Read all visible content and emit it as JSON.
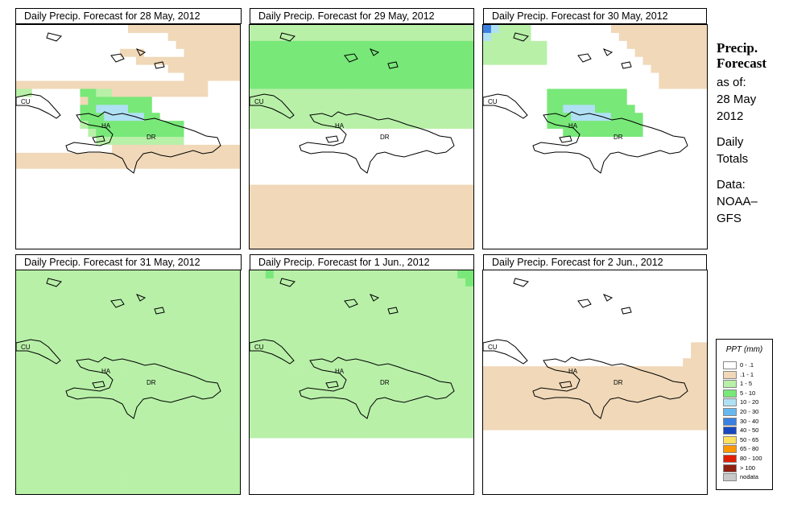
{
  "sidebar": {
    "title_line1": "Precip.",
    "title_line2": "Forecast",
    "asof_label": "as of:",
    "date_line1": "28 May",
    "date_line2": "2012",
    "totals_line1": "Daily",
    "totals_line2": "Totals",
    "source_line1": "Data:",
    "source_line2": "NOAA–",
    "source_line3": "GFS"
  },
  "map_labels": {
    "cuba": "CU",
    "haiti": "HA",
    "dominican_republic": "DR"
  },
  "panels": [
    {
      "title": "Daily Precip. Forecast for  28 May, 2012",
      "grid": [
        "W,W,W,W,W,W,W,W,W,W,W,W,W,W,T,T,T,T,T,T,T,T,T,T,T,T,T,T",
        "W,W,W,W,W,W,W,W,W,W,W,W,W,W,W,W,W,W,W,T,T,T,T,T,T,T,T,T",
        "W,W,W,W,W,W,W,W,W,W,W,W,W,W,W,W,W,W,W,W,T,T,T,T,T,T,T,T",
        "W,W,W,W,W,W,W,W,W,W,W,W,W,T,T,T,W,W,W,W,W,T,T,T,T,T,T,T",
        "W,W,W,W,W,W,W,W,W,W,W,W,W,W,W,T,T,T,T,T,T,T,T,T,T,T,T,T",
        "W,W,W,W,W,W,W,W,W,W,W,W,W,W,W,W,W,W,W,T,T,T,T,T,T,T,T,T",
        "W,W,W,W,W,W,W,W,W,W,W,W,W,W,W,W,W,W,W,W,W,T,T,T,T,T,T,T",
        "T,T,T,T,T,T,T,T,T,T,T,T,T,T,T,T,T,T,T,T,T,T,T,T,W,W,W,W",
        "L,L,W,W,W,W,W,W,G,G,L,L,T,T,T,T,T,T,T,T,T,T,T,T,W,W,W,W",
        "W,W,W,W,W,W,W,W,T,G,G,G,G,G,G,G,G,W,W,W,W,W,W,W,W,W,W,W",
        "W,W,W,W,W,W,W,W,G,G,S,S,S,S,G,G,G,W,W,W,W,W,W,W,W,W,W,W",
        "W,W,W,W,W,W,W,W,G,G,G,S,S,S,S,S,G,G,W,W,W,W,W,W,W,W,W,W",
        "W,W,W,W,W,W,W,W,L,G,G,G,G,G,G,G,G,G,G,G,G,W,W,W,W,W,W,W",
        "W,W,W,W,W,W,W,W,W,L,G,G,G,G,G,G,G,G,G,G,G,W,W,W,W,W,W,W",
        "W,W,W,W,W,W,W,W,W,W,L,L,L,L,L,L,L,L,L,L,L,W,W,W,W,W,W,W",
        "W,W,W,W,W,W,W,W,W,W,W,W,T,T,T,T,T,T,T,T,T,T,T,T,T,T,T,T",
        "T,T,T,T,T,T,T,T,T,T,T,T,T,T,T,T,T,T,T,T,T,T,T,T,T,T,T,T",
        "T,T,T,T,T,T,T,T,T,T,T,T,T,T,T,T,T,T,T,T,T,T,T,T,T,T,T,T",
        "W,W,W,W,W,W,W,W,W,W,W,W,W,W,W,W,W,W,W,W,W,W,W,W,W,W,W,W",
        "W,W,W,W,W,W,W,W,W,W,W,W,W,W,W,W,W,W,W,W,W,W,W,W,W,W,W,W",
        "W,W,W,W,W,W,W,W,W,W,W,W,W,W,W,W,W,W,W,W,W,W,W,W,W,W,W,W",
        "W,W,W,W,W,W,W,W,W,W,W,W,W,W,W,W,W,W,W,W,W,W,W,W,W,W,W,W",
        "W,W,W,W,W,W,W,W,W,W,W,W,W,W,W,W,W,W,W,W,W,W,W,W,W,W,W,W",
        "W,W,W,W,W,W,W,W,W,W,W,W,W,W,W,W,W,W,W,W,W,W,W,W,W,W,W,W",
        "W,W,W,W,W,W,W,W,W,W,W,W,W,W,W,W,W,W,W,W,W,W,W,W,W,W,W,W",
        "W,W,W,W,W,W,W,W,W,W,W,W,W,W,W,W,W,W,W,W,W,W,W,W,W,W,W,W",
        "W,W,W,W,W,W,W,W,W,W,W,W,W,W,W,W,W,W,W,W,W,W,W,W,W,W,W,W",
        "W,W,W,W,W,W,W,W,W,W,W,W,W,W,W,W,W,W,W,W,W,W,W,W,W,W,W,W"
      ]
    },
    {
      "title": "Daily Precip. Forecast for  29 May, 2012",
      "grid": [
        "L,L,L,L,L,L,L,L,L,L,L,L,L,L,L,L,L,L,L,L,L,L,L,L,L,L,L,L",
        "L,L,L,L,L,L,L,L,L,L,L,L,L,L,L,L,L,L,L,L,L,L,L,L,L,L,L,L",
        "G,G,G,G,G,G,G,G,G,G,G,G,G,G,G,G,G,G,G,G,G,G,G,G,G,G,G,G",
        "G,G,G,G,G,G,G,G,G,G,G,G,G,G,G,G,G,G,G,G,G,G,G,G,G,G,G,G",
        "G,G,G,G,G,G,G,G,G,G,G,G,G,G,G,G,G,G,G,G,G,G,G,G,G,G,G,G",
        "G,G,G,G,G,G,G,G,G,G,G,G,G,G,G,G,G,G,G,G,G,G,G,G,G,G,G,G",
        "G,G,G,G,G,G,G,G,G,G,G,G,G,G,G,G,G,G,G,G,G,G,G,G,G,G,G,G",
        "G,G,G,G,G,G,G,G,G,G,G,G,G,G,G,G,G,G,G,G,G,G,G,G,G,G,G,G",
        "L,L,L,L,L,L,L,L,L,L,L,L,L,L,L,L,L,L,L,L,L,L,L,L,L,L,L,L",
        "L,L,L,L,L,L,L,L,L,L,L,L,L,L,L,L,L,L,L,L,L,L,L,L,L,L,L,L",
        "L,L,L,L,L,L,L,L,L,L,L,L,L,L,L,L,L,L,L,L,L,L,L,L,L,L,L,L",
        "L,L,L,L,L,L,L,L,L,L,L,L,L,L,L,L,L,L,L,L,L,L,L,L,L,L,L,L",
        "L,L,L,L,L,L,L,L,L,L,L,L,L,L,L,L,L,L,L,L,L,L,L,L,L,L,L,L",
        "W,W,W,W,W,W,W,W,W,W,W,W,W,W,W,W,W,W,W,W,W,W,W,W,W,W,W,W",
        "W,W,W,W,W,W,W,W,W,W,W,W,W,W,W,W,W,W,W,W,W,W,W,W,W,W,W,W",
        "W,W,W,W,W,W,W,W,W,W,W,W,W,W,W,W,W,W,W,W,W,W,W,W,W,W,W,W",
        "W,W,W,W,W,W,W,W,W,W,W,W,W,W,W,W,W,W,W,W,W,W,W,W,W,W,W,W",
        "W,W,W,W,W,W,W,W,W,W,W,W,W,W,W,W,W,W,W,W,W,W,W,W,W,W,W,W",
        "W,W,W,W,W,W,W,W,W,W,W,W,W,W,W,W,W,W,W,W,W,W,W,W,W,W,W,W",
        "W,W,W,W,W,W,W,W,W,W,W,W,W,W,W,W,W,W,W,W,W,W,W,W,W,W,W,W",
        "T,T,T,T,T,T,T,T,T,T,T,T,T,T,T,T,T,T,T,T,T,T,T,T,T,T,T,T",
        "T,T,T,T,T,T,T,T,T,T,T,T,T,T,T,T,T,T,T,T,T,T,T,T,T,T,T,T",
        "T,T,T,T,T,T,T,T,T,T,T,T,T,T,T,T,T,T,T,T,T,T,T,T,T,T,T,T",
        "T,T,T,T,T,T,T,T,T,T,T,T,T,T,T,T,T,T,T,T,T,T,T,T,T,T,T,T",
        "T,T,T,T,T,T,T,T,T,T,T,T,T,T,T,T,T,T,T,T,T,T,T,T,T,T,T,T",
        "T,T,T,T,T,T,T,T,T,T,T,T,T,T,T,T,T,T,T,T,T,T,T,T,T,T,T,T",
        "T,T,T,T,T,T,T,T,T,T,T,T,T,T,T,T,T,T,T,T,T,T,T,T,T,T,T,T",
        "T,T,T,T,T,T,T,T,T,T,T,T,T,T,T,T,T,T,T,T,T,T,T,T,T,T,T,T"
      ]
    },
    {
      "title": "Daily Precip. Forecast for  30 May, 2012",
      "grid": [
        "B,S,L,L,L,L,W,W,W,W,W,W,W,W,W,W,T,T,T,T,T,T,T,T,T,T,T,T",
        "S,L,L,L,L,L,W,W,W,W,W,W,W,W,W,W,W,T,T,T,T,T,T,T,T,T,T,T",
        "L,L,L,L,L,L,L,L,W,W,W,W,W,W,W,W,W,W,T,T,T,T,T,T,T,T,T,T",
        "L,L,L,L,L,L,L,L,W,W,W,W,W,W,W,W,W,W,W,T,T,T,T,T,T,T,T,T",
        "L,L,L,L,L,L,L,L,W,W,W,W,W,W,W,W,W,W,W,W,T,T,T,T,T,T,T,T",
        "W,W,W,W,W,W,W,W,W,W,W,W,W,W,W,W,W,W,W,W,W,T,T,T,T,T,T,T",
        "W,W,W,W,W,W,W,W,W,W,W,W,W,W,W,W,W,W,W,W,W,W,T,T,T,T,T,T",
        "W,W,W,W,W,W,W,W,W,W,W,W,W,W,W,W,W,W,W,W,W,W,T,T,T,T,T,T",
        "W,W,W,W,W,W,W,W,G,G,G,G,G,G,G,G,G,G,W,W,W,W,W,W,W,W,W,W",
        "W,W,W,W,W,W,W,W,G,G,G,G,G,G,G,G,G,G,W,W,W,W,W,W,W,W,W,W",
        "W,W,W,W,W,W,W,W,G,G,S,S,S,S,G,G,G,G,G,W,W,W,W,W,W,W,W,W",
        "W,W,W,W,W,W,W,W,G,G,G,S,S,S,S,S,G,G,G,G,W,W,W,W,W,W,W,W",
        "W,W,W,W,W,W,W,W,G,G,G,G,G,G,G,G,G,G,G,G,W,W,W,W,W,W,W,W",
        "W,W,W,W,W,W,W,W,W,W,G,G,G,G,G,G,G,G,G,G,W,W,W,W,W,W,W,W",
        "W,W,W,W,W,W,W,W,W,W,W,W,W,W,W,W,W,W,W,W,W,W,W,W,W,W,W,W",
        "W,W,W,W,W,W,W,W,W,W,W,W,W,W,W,W,W,W,W,W,W,W,W,W,W,W,W,W",
        "W,W,W,W,W,W,W,W,W,W,W,W,W,W,W,W,W,W,W,W,W,W,W,W,W,W,W,W",
        "W,W,W,W,W,W,W,W,W,W,W,W,W,W,W,W,W,W,W,W,W,W,W,W,W,W,W,W",
        "W,W,W,W,W,W,W,W,W,W,W,W,W,W,W,W,W,W,W,W,W,W,W,W,W,W,W,W",
        "W,W,W,W,W,W,W,W,W,W,W,W,W,W,W,W,W,W,W,W,W,W,W,W,W,W,W,W",
        "W,W,W,W,W,W,W,W,W,W,W,W,W,W,W,W,W,W,W,W,W,W,W,W,W,W,W,W",
        "W,W,W,W,W,W,W,W,W,W,W,W,W,W,W,W,W,W,W,W,W,W,W,W,W,W,W,W",
        "W,W,W,W,W,W,W,W,W,W,W,W,W,W,W,W,W,W,W,W,W,W,W,W,W,W,W,W",
        "W,W,W,W,W,W,W,W,W,W,W,W,W,W,W,W,W,W,W,W,W,W,W,W,W,W,W,W",
        "W,W,W,W,W,W,W,W,W,W,W,W,W,W,W,W,W,W,W,W,W,W,W,W,W,W,W,W",
        "W,W,W,W,W,W,W,W,W,W,W,W,W,W,W,W,W,W,W,W,W,W,W,W,W,W,W,W",
        "W,W,W,W,W,W,W,W,W,W,W,W,W,W,W,W,W,W,W,W,W,W,W,W,W,W,W,W",
        "W,W,W,W,W,W,W,W,W,W,W,W,W,W,W,W,W,W,W,W,W,W,W,W,W,W,W,W"
      ]
    },
    {
      "title": "Daily Precip. Forecast for  31 May, 2012",
      "grid": [
        "L,L,L,L,L,L,L,L,L,L,L,L,L,L,L,L,L,L,L,L,L,L,L,L,L,L,L,L",
        "L,L,L,L,L,L,L,L,L,L,L,L,L,L,L,L,L,L,L,L,L,L,L,L,L,L,L,L",
        "L,L,L,L,L,L,L,L,L,L,L,L,L,L,L,L,L,L,L,L,L,L,L,L,L,L,L,L",
        "L,L,L,L,L,L,L,L,L,L,L,L,L,L,L,L,L,L,L,L,L,L,L,L,L,L,L,L",
        "L,L,L,L,L,L,L,L,L,L,L,L,L,L,L,L,L,L,L,L,L,L,L,L,L,L,L,L",
        "L,L,L,L,L,L,L,L,L,L,L,L,L,L,L,L,L,L,L,L,L,L,L,L,L,L,L,L",
        "L,L,L,L,L,L,L,L,L,L,L,L,L,L,L,L,L,L,L,L,L,L,L,L,L,L,L,L",
        "L,L,L,L,L,L,L,L,L,L,L,L,L,L,L,L,L,L,L,L,L,L,L,L,L,L,L,L",
        "L,L,L,L,L,L,L,L,L,L,L,L,L,L,L,L,L,L,L,L,L,L,L,L,L,L,L,L",
        "L,L,L,L,L,L,L,L,L,L,L,L,L,L,L,L,L,L,L,L,L,L,L,L,L,L,L,L",
        "L,L,L,L,L,L,L,L,L,L,L,L,L,L,L,L,L,L,L,L,L,L,L,L,L,L,L,L",
        "L,L,L,L,L,L,L,L,L,L,L,L,L,L,L,L,L,L,L,L,L,L,L,L,L,L,L,L",
        "L,L,L,L,L,L,L,L,L,L,L,L,L,L,L,L,L,L,L,L,L,L,L,L,L,L,L,L",
        "L,L,L,L,L,L,L,L,L,L,L,L,L,L,L,L,L,L,L,L,L,L,L,L,L,L,L,L",
        "L,L,L,L,L,L,L,L,L,L,L,L,L,L,L,L,L,L,L,L,L,L,L,L,L,L,L,L",
        "L,L,L,L,L,L,L,L,L,L,L,L,L,L,L,L,L,L,L,L,L,L,L,L,L,L,L,L",
        "L,L,L,L,L,L,L,L,L,L,L,L,L,L,L,L,L,L,L,L,L,L,L,L,L,L,L,L",
        "L,L,L,L,L,L,L,L,L,L,L,L,L,L,L,L,L,L,L,L,L,L,L,L,L,L,L,L",
        "L,L,L,L,L,L,L,L,L,L,L,L,L,L,L,L,L,L,L,L,L,L,L,L,L,L,L,L",
        "L,L,L,L,L,L,L,L,L,L,L,L,L,L,L,L,L,L,L,L,L,L,L,L,L,L,L,L",
        "L,L,L,L,L,L,L,L,L,L,L,L,L,L,L,L,L,L,L,L,L,L,L,L,L,L,L,L",
        "L,L,L,L,L,L,L,L,L,L,L,L,L,L,L,L,L,L,L,L,L,L,L,L,L,L,L,L",
        "L,L,L,L,L,L,L,L,L,L,L,L,L,L,L,L,L,L,L,L,L,L,L,L,L,L,L,L",
        "L,L,L,L,L,L,L,L,L,L,L,L,L,L,L,L,L,L,L,L,L,L,L,L,L,L,L,L",
        "L,L,L,L,L,L,L,L,L,L,L,L,L,L,L,L,L,L,L,L,L,L,L,L,L,L,L,L",
        "L,L,L,L,L,L,L,L,L,L,L,L,L,L,L,L,L,L,L,L,L,L,L,L,L,L,L,L",
        "L,L,L,L,L,L,L,L,L,L,L,L,L,L,L,L,L,L,L,L,L,L,L,L,L,L,L,L",
        "L,L,L,L,L,L,L,L,L,L,L,L,L,L,L,L,L,L,L,L,L,L,L,L,L,L,L,L"
      ]
    },
    {
      "title": "Daily Precip. Forecast for  1 Jun., 2012",
      "grid": [
        "L,L,G,L,L,L,L,L,L,L,L,L,L,L,L,L,L,L,L,L,L,L,L,L,L,L,G,G",
        "L,L,L,L,L,L,L,L,L,L,L,L,L,L,L,L,L,L,L,L,L,L,L,L,L,L,L,G",
        "L,L,L,L,L,L,L,L,L,L,L,L,L,L,L,L,L,L,L,L,L,L,L,L,L,L,L,L",
        "L,L,L,L,L,L,L,L,L,L,L,L,L,L,L,L,L,L,L,L,L,L,L,L,L,L,L,L",
        "L,L,L,L,L,L,L,L,L,L,L,L,L,L,L,L,L,L,L,L,L,L,L,L,L,L,L,L",
        "L,L,L,L,L,L,L,L,L,L,L,L,L,L,L,L,L,L,L,L,L,L,L,L,L,L,L,L",
        "L,L,L,L,L,L,L,L,L,L,L,L,L,L,L,L,L,L,L,L,L,L,L,L,L,L,L,L",
        "L,L,L,L,L,L,L,L,L,L,L,L,L,L,L,L,L,L,L,L,L,L,L,L,L,L,L,L",
        "L,L,L,L,L,L,L,L,L,L,L,L,L,L,L,L,L,L,L,L,L,L,L,L,L,L,L,L",
        "L,L,L,L,L,L,L,L,L,L,L,L,L,L,L,L,L,L,L,L,L,L,L,L,L,L,L,L",
        "L,L,L,L,L,L,L,L,L,L,L,L,L,L,L,L,L,L,L,L,L,L,L,L,L,L,L,L",
        "L,L,L,L,L,L,L,L,L,L,L,L,L,L,L,L,L,L,L,L,L,L,L,L,L,L,L,L",
        "L,L,L,L,L,L,L,L,L,L,L,L,L,L,L,L,L,L,L,L,L,L,L,L,L,L,L,L",
        "L,L,L,L,L,L,L,L,L,L,L,L,L,L,L,L,L,L,L,L,L,L,L,L,L,L,L,L",
        "L,L,L,L,L,L,L,L,L,L,L,L,L,L,L,L,L,L,L,L,L,L,L,L,L,L,L,L",
        "L,L,L,L,L,L,L,L,L,L,L,L,L,L,L,L,L,L,L,L,L,L,L,L,L,L,L,L",
        "L,L,L,L,L,L,L,L,L,L,L,L,L,L,L,L,L,L,L,L,L,L,L,L,L,L,L,L",
        "L,L,L,L,L,L,L,L,L,L,L,L,L,L,L,L,L,L,L,L,L,L,L,L,L,L,L,L",
        "L,L,L,L,L,L,L,L,L,L,L,L,L,L,L,L,L,L,L,L,L,L,L,L,L,L,L,L",
        "L,L,L,L,L,L,L,L,L,L,L,L,L,L,L,L,L,L,L,L,L,L,L,L,L,L,L,L",
        "L,L,L,L,L,L,L,L,L,L,L,L,L,L,L,L,L,L,L,L,L,L,L,L,L,L,L,L",
        "W,W,W,W,W,W,W,W,W,W,W,W,W,W,W,W,W,W,W,W,W,W,W,W,W,W,W,W",
        "W,W,W,W,W,W,W,W,W,W,W,W,W,W,W,W,W,W,W,W,W,W,W,W,W,W,W,W",
        "W,W,W,W,W,W,W,W,W,W,W,W,W,W,W,W,W,W,W,W,W,W,W,W,W,W,W,W",
        "W,W,W,W,W,W,W,W,W,W,W,W,W,W,W,W,W,W,W,W,W,W,W,W,W,W,W,W",
        "W,W,W,W,W,W,W,W,W,W,W,W,W,W,W,W,W,W,W,W,W,W,W,W,W,W,W,W",
        "W,W,W,W,W,W,W,W,W,W,W,W,W,W,W,W,W,W,W,W,W,W,W,W,W,W,W,W",
        "W,W,W,W,W,W,W,W,W,W,W,W,W,W,W,W,W,W,W,W,W,W,W,W,W,W,W,W"
      ]
    },
    {
      "title": "Daily Precip. Forecast for  2 Jun., 2012",
      "grid": [
        "W,W,W,W,W,W,W,W,W,W,W,W,W,W,W,W,W,W,W,W,W,W,W,W,W,W,W,W",
        "W,W,W,W,W,W,W,W,W,W,W,W,W,W,W,W,W,W,W,W,W,W,W,W,W,W,W,W",
        "W,W,W,W,W,W,W,W,W,W,W,W,W,W,W,W,W,W,W,W,W,W,W,W,W,W,W,W",
        "W,W,W,W,W,W,W,W,W,W,W,W,W,W,W,W,W,W,W,W,W,W,W,W,W,W,W,W",
        "W,W,W,W,W,W,W,W,W,W,W,W,W,W,W,W,W,W,W,W,W,W,W,W,W,W,W,W",
        "W,W,W,W,W,W,W,W,W,W,W,W,W,W,W,W,W,W,W,W,W,W,W,W,W,W,W,W",
        "W,W,W,W,W,W,W,W,W,W,W,W,W,W,W,W,W,W,W,W,W,W,W,W,W,W,W,W",
        "W,W,W,W,W,W,W,W,W,W,W,W,W,W,W,W,W,W,W,W,W,W,W,W,W,W,W,W",
        "W,W,W,W,W,W,W,W,W,W,W,W,W,W,W,W,W,W,W,W,W,W,W,W,W,W,W,W",
        "W,W,W,W,W,W,W,W,W,W,W,W,W,W,W,W,W,W,W,W,W,W,W,W,W,W,T,T",
        "W,W,W,W,W,W,W,W,W,W,W,W,W,W,W,W,W,W,W,W,W,W,W,W,W,W,T,T",
        "W,W,W,W,W,W,W,W,W,W,W,W,W,W,W,W,W,W,W,W,W,W,W,W,W,T,T,T",
        "T,T,T,T,T,T,T,T,T,T,T,T,T,T,T,T,T,T,T,T,T,T,T,T,T,T,T,T",
        "T,T,T,T,T,T,T,T,T,T,T,T,T,T,T,T,T,T,T,T,T,T,T,T,T,T,T,T",
        "T,T,T,T,T,T,T,T,T,T,T,T,T,T,T,T,T,T,T,T,T,T,T,T,T,T,T,T",
        "T,T,T,T,T,T,T,T,T,T,T,T,T,T,T,T,T,T,T,T,T,T,T,T,T,T,T,T",
        "T,T,T,T,T,T,T,T,T,T,T,T,T,T,T,T,T,T,T,T,T,T,T,T,T,T,T,T",
        "T,T,T,T,T,T,T,T,T,T,T,T,T,T,T,T,T,T,T,T,T,T,T,T,T,T,T,T",
        "T,T,T,T,T,T,T,T,T,T,T,T,T,T,T,T,T,T,T,T,T,T,T,T,T,T,T,T",
        "T,T,T,T,T,T,T,T,T,T,T,T,T,T,T,T,T,T,T,T,T,T,T,T,T,T,T,T",
        "W,W,W,W,W,W,W,W,W,W,W,W,W,W,W,W,W,W,W,W,W,W,W,W,W,W,W,W",
        "W,W,W,W,W,W,W,W,W,W,W,W,W,W,W,W,W,W,W,W,W,W,W,W,W,W,W,W",
        "W,W,W,W,W,W,W,W,W,W,W,W,W,W,W,W,W,W,W,W,W,W,W,W,W,W,W,W",
        "W,W,W,W,W,W,W,W,W,W,W,W,W,W,W,W,W,W,W,W,W,W,W,W,W,W,W,W",
        "W,W,W,W,W,W,W,W,W,W,W,W,W,W,W,W,W,W,W,W,W,W,W,W,W,W,W,W",
        "W,W,W,W,W,W,W,W,W,W,W,W,W,W,W,W,W,W,W,W,W,W,W,W,W,W,W,W",
        "W,W,W,W,W,W,W,W,W,W,W,W,W,W,W,W,W,W,W,W,W,W,W,W,W,W,W,W",
        "W,W,W,W,W,W,W,W,W,W,W,W,W,W,W,W,W,W,W,W,W,W,W,W,W,W,W,W"
      ]
    }
  ],
  "grid_color_key": {
    "W": "#ffffff",
    "T": "#f0d8b8",
    "L": "#b8f0a8",
    "G": "#78e878",
    "S": "#b0e0f4",
    "B": "#3a80e0",
    "Y": "#ffe060"
  },
  "legend": {
    "title": "PPT (mm)",
    "items": [
      {
        "label": "0 - .1",
        "color": "#ffffff"
      },
      {
        "label": ".1 - 1",
        "color": "#f0d8b8"
      },
      {
        "label": "1 - 5",
        "color": "#b8f0a8"
      },
      {
        "label": "5 - 10",
        "color": "#78e878"
      },
      {
        "label": "10 - 20",
        "color": "#b0e0f4"
      },
      {
        "label": "20 - 30",
        "color": "#68b8f0"
      },
      {
        "label": "30 - 40",
        "color": "#3a80e0"
      },
      {
        "label": "40 - 50",
        "color": "#1848c0"
      },
      {
        "label": "50 - 65",
        "color": "#ffe060"
      },
      {
        "label": "65 - 80",
        "color": "#ff9800"
      },
      {
        "label": "80 - 100",
        "color": "#e02000"
      },
      {
        "label": "> 100",
        "color": "#902010"
      },
      {
        "label": "nodata",
        "color": "#c8c8c8"
      }
    ]
  }
}
